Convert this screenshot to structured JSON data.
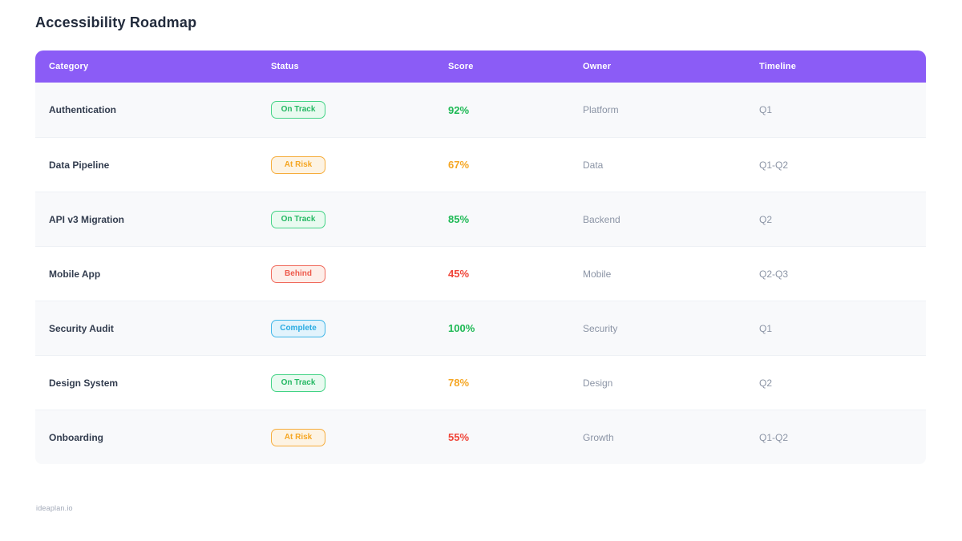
{
  "page": {
    "title": "Accessibility Roadmap",
    "footer": "ideaplan.io"
  },
  "chart_data": {
    "type": "table",
    "title": "Accessibility Roadmap",
    "columns": [
      "Category",
      "Status",
      "Score",
      "Owner",
      "Timeline"
    ],
    "rows": [
      {
        "category": "Authentication",
        "status": "On Track",
        "status_key": "on_track",
        "score": "92%",
        "score_color": "green",
        "owner": "Platform",
        "timeline": "Q1"
      },
      {
        "category": "Data Pipeline",
        "status": "At Risk",
        "status_key": "at_risk",
        "score": "67%",
        "score_color": "orange",
        "owner": "Data",
        "timeline": "Q1-Q2"
      },
      {
        "category": "API v3 Migration",
        "status": "On Track",
        "status_key": "on_track",
        "score": "85%",
        "score_color": "green",
        "owner": "Backend",
        "timeline": "Q2"
      },
      {
        "category": "Mobile App",
        "status": "Behind",
        "status_key": "behind",
        "score": "45%",
        "score_color": "red",
        "owner": "Mobile",
        "timeline": "Q2-Q3"
      },
      {
        "category": "Security Audit",
        "status": "Complete",
        "status_key": "complete",
        "score": "100%",
        "score_color": "green",
        "owner": "Security",
        "timeline": "Q1"
      },
      {
        "category": "Design System",
        "status": "On Track",
        "status_key": "on_track",
        "score": "78%",
        "score_color": "orange",
        "owner": "Design",
        "timeline": "Q2"
      },
      {
        "category": "Onboarding",
        "status": "At Risk",
        "status_key": "at_risk",
        "score": "55%",
        "score_color": "red",
        "owner": "Growth",
        "timeline": "Q1-Q2"
      }
    ]
  },
  "colors": {
    "header_bg": "#8b5cf6",
    "title_text": "#222b3c",
    "status": {
      "on_track": {
        "text": "#25b864",
        "border": "#42d385",
        "bg": "#e9faf0"
      },
      "at_risk": {
        "text": "#f5a623",
        "border": "#f6ad3c",
        "bg": "#fdf3e3"
      },
      "behind": {
        "text": "#ee5a4c",
        "border": "#f06a5c",
        "bg": "#fdeee9"
      },
      "complete": {
        "text": "#29abe2",
        "border": "#3eb6e8",
        "bg": "#e2f3fc"
      }
    },
    "score": {
      "green": "#1db954",
      "orange": "#f5a623",
      "red": "#f04438"
    }
  }
}
